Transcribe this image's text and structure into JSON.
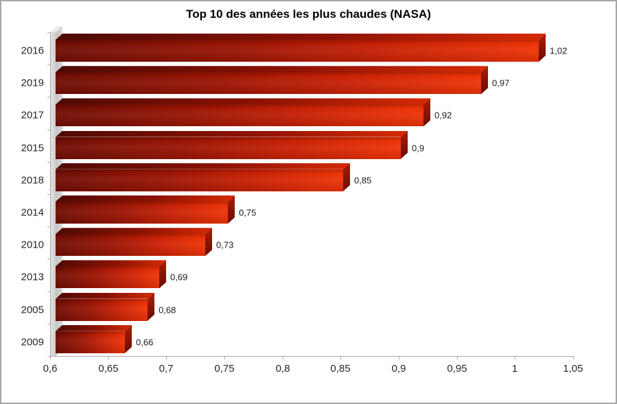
{
  "frame": {
    "background": "#ffffff",
    "border_color": "#a6a6a6"
  },
  "chart_data": {
    "type": "bar",
    "orientation": "horizontal",
    "style": "3d-excel",
    "title": "Top 10 des années les plus chaudes (NASA)",
    "categories": [
      "2016",
      "2019",
      "2017",
      "2015",
      "2018",
      "2014",
      "2010",
      "2013",
      "2005",
      "2009"
    ],
    "values": [
      1.02,
      0.97,
      0.92,
      0.9,
      0.85,
      0.75,
      0.73,
      0.69,
      0.68,
      0.66
    ],
    "value_labels": [
      "1,02",
      "0,97",
      "0,92",
      "0,9",
      "0,85",
      "0,75",
      "0,73",
      "0,69",
      "0,68",
      "0,66"
    ],
    "xlabel": "",
    "ylabel": "",
    "xlim": [
      0.6,
      1.05
    ],
    "x_tick_values": [
      0.6,
      0.65,
      0.7,
      0.75,
      0.8,
      0.85,
      0.9,
      0.95,
      1,
      1.05
    ],
    "x_tick_labels": [
      "0,6",
      "0,65",
      "0,7",
      "0,75",
      "0,8",
      "0,85",
      "0,9",
      "0,95",
      "1",
      "1,05"
    ],
    "grid": false,
    "legend": "none",
    "decimal_separator": ",",
    "colors": {
      "bar_dark": "#6f0e05",
      "bar_bright": "#ef3407",
      "bar_side": "#7a1003",
      "wall": "#d9d9d9",
      "axis": "#a6a6a6",
      "text": "#262626",
      "title_text": "#000000"
    }
  }
}
